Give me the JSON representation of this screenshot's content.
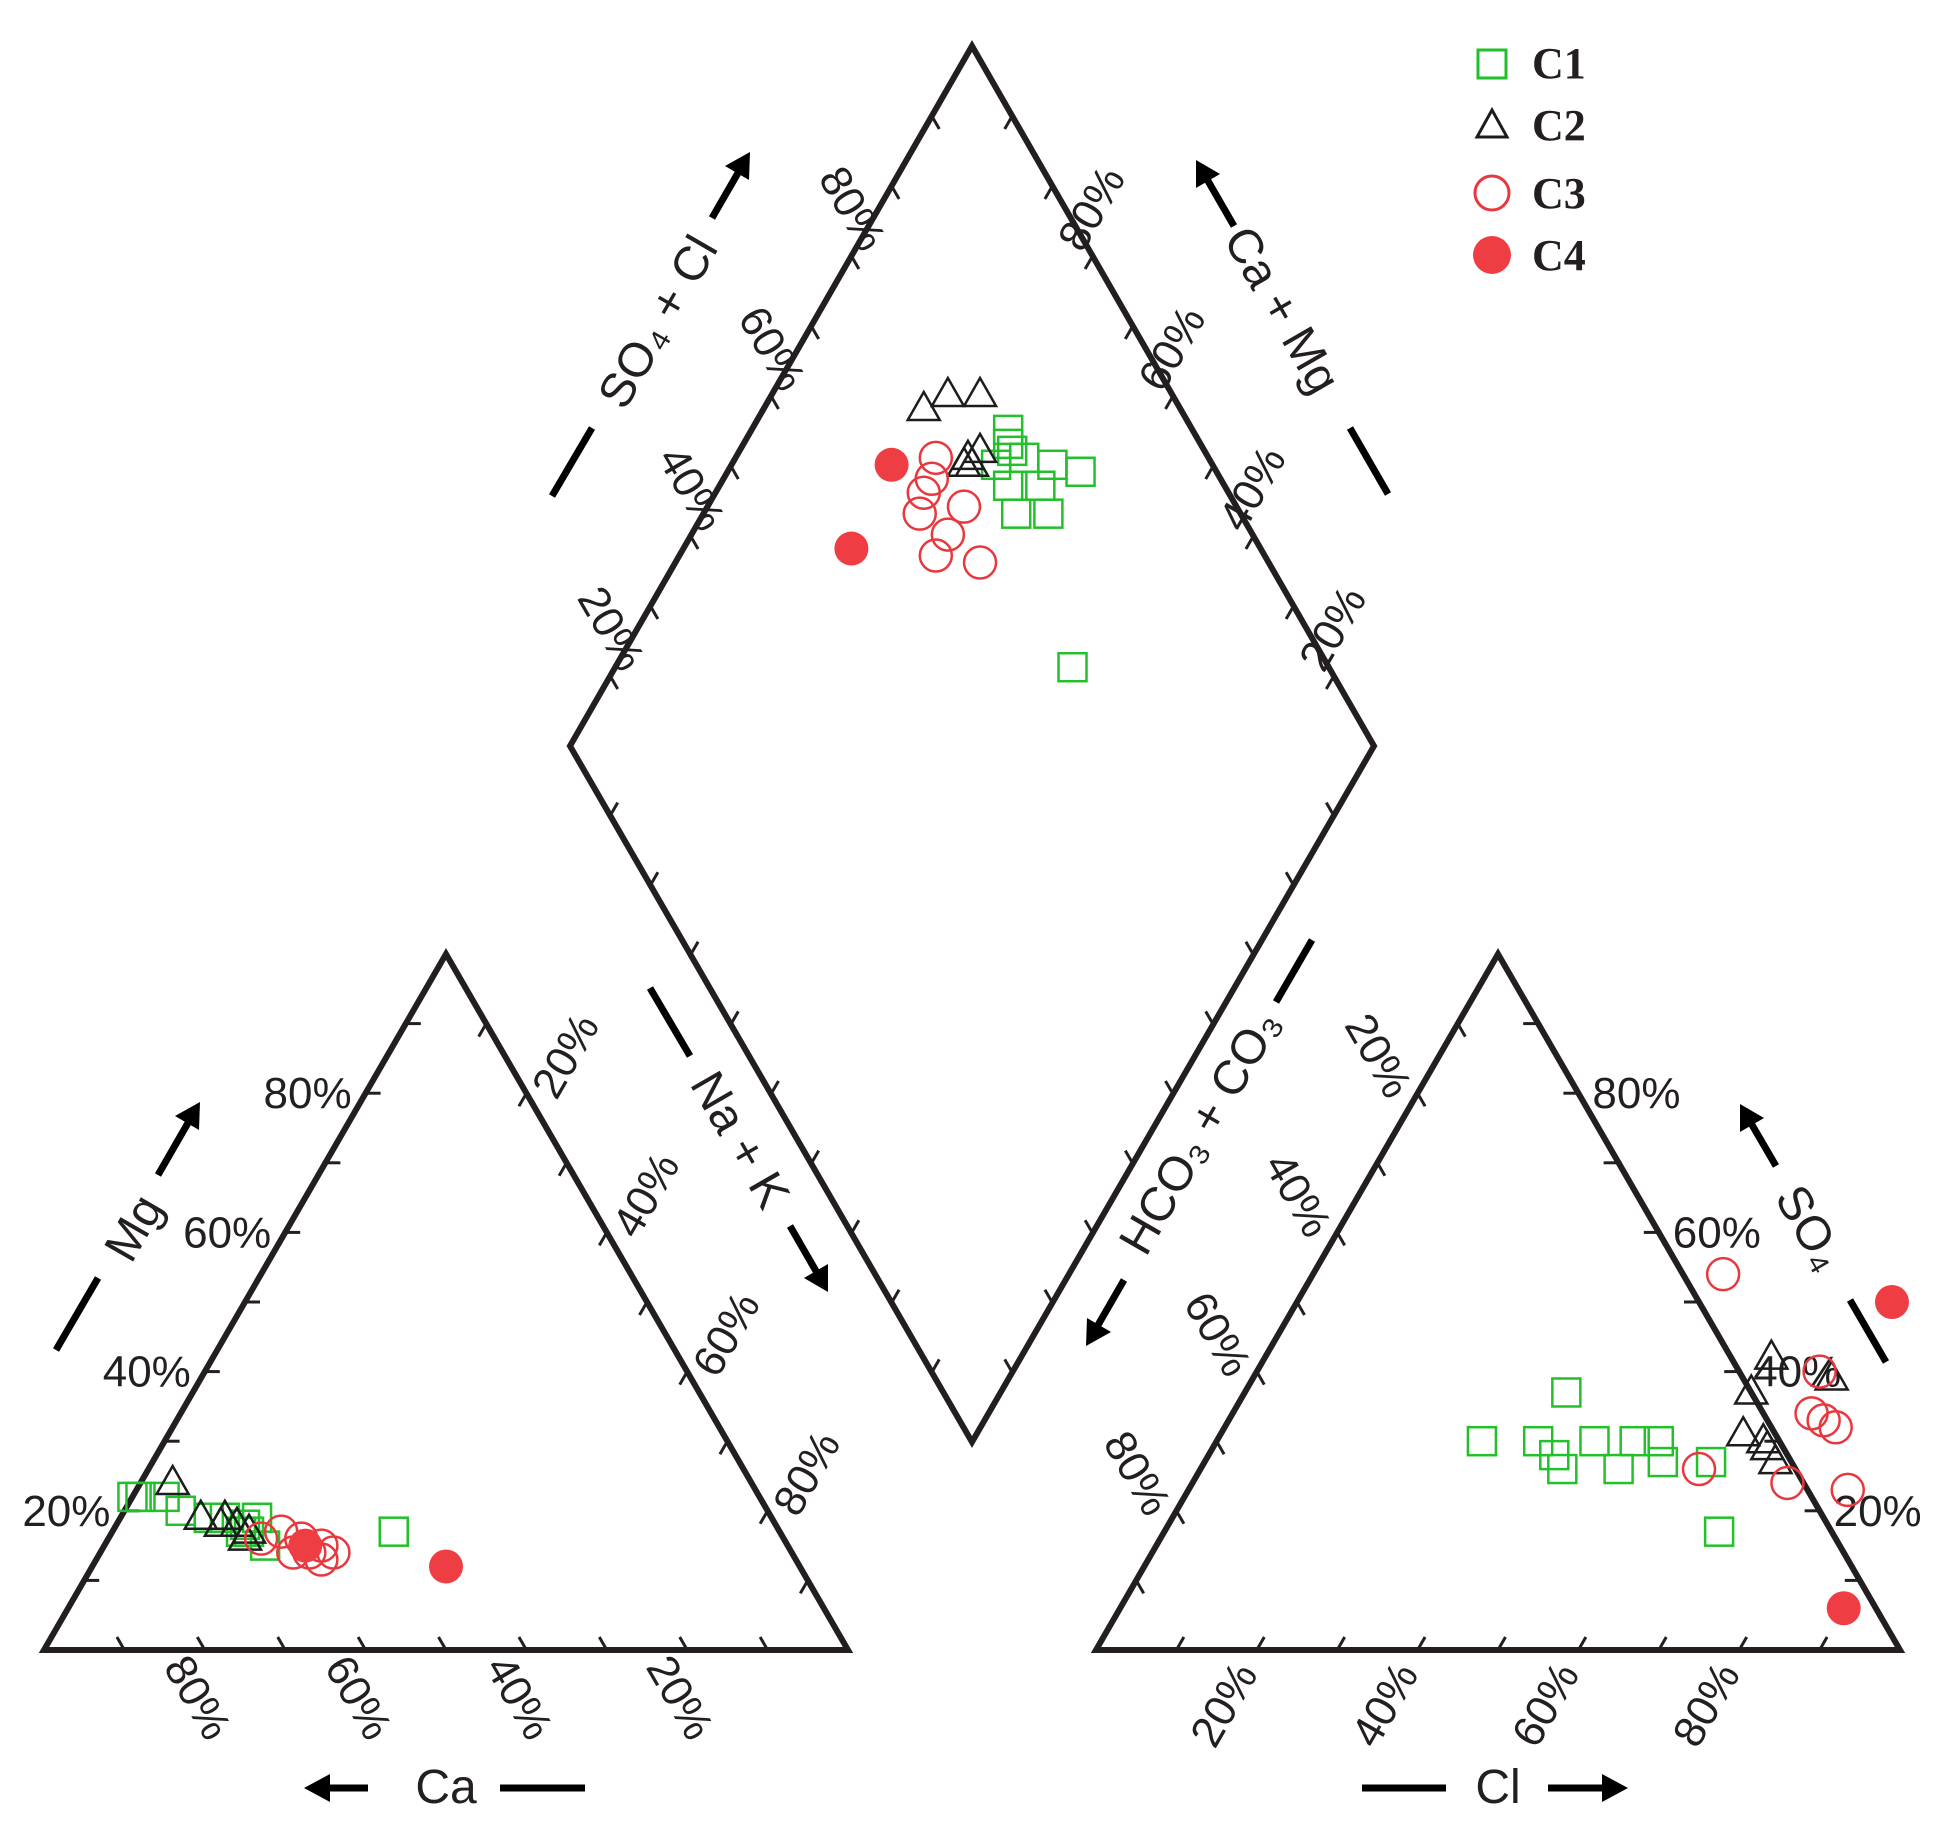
{
  "chart_data": {
    "type": "scatter",
    "subtype": "piper",
    "colors": {
      "C1": "#22c02a",
      "C2": "#1c1c1c",
      "C3": "#e8383d",
      "C4": "#ee3e44",
      "axis": "#231f20"
    },
    "legend": {
      "placement": "top-right",
      "entries": [
        {
          "label": "C1",
          "marker": "open-square",
          "color": "#22c02a"
        },
        {
          "label": "C2",
          "marker": "open-triangle",
          "color": "#1c1c1c"
        },
        {
          "label": "C3",
          "marker": "open-circle",
          "color": "#e8383d"
        },
        {
          "label": "C4",
          "marker": "filled-circle",
          "color": "#ee3e44"
        }
      ]
    },
    "axis_labels": {
      "ca": "Ca",
      "mg": "Mg",
      "na_k": "Na + K",
      "hco3_co3": "HCO₃ + CO₃",
      "so4": "SO₄",
      "cl": "Cl",
      "so4_cl": "SO₄ + Cl",
      "ca_mg": "Ca + Mg"
    },
    "tick_labels": {
      "ca": [
        "80%",
        "60%",
        "40%",
        "20%"
      ],
      "mg": [
        "20%",
        "40%",
        "60%",
        "80%"
      ],
      "na_k": [
        "20%",
        "40%",
        "60%",
        "80%"
      ],
      "cl": [
        "20%",
        "40%",
        "60%",
        "80%"
      ],
      "so4": [
        "20%",
        "40%",
        "60%",
        "80%"
      ],
      "hco3_co3": [
        "20%",
        "40%",
        "60%",
        "80%"
      ],
      "so4_cl": [
        "20%",
        "40%",
        "60%",
        "80%"
      ],
      "ca_mg": [
        "20%",
        "40%",
        "60%",
        "80%"
      ]
    },
    "series": [
      {
        "name": "C1",
        "cations": [
          {
            "ca": 78,
            "mg": 22
          },
          {
            "ca": 77,
            "mg": 22
          },
          {
            "ca": 74,
            "mg": 22
          },
          {
            "ca": 73,
            "mg": 20
          },
          {
            "ca": 70,
            "mg": 19
          },
          {
            "ca": 68,
            "mg": 19
          },
          {
            "ca": 67,
            "mg": 17
          },
          {
            "ca": 66,
            "mg": 18
          },
          {
            "ca": 66,
            "mg": 17
          },
          {
            "ca": 65,
            "mg": 15
          },
          {
            "ca": 64,
            "mg": 19
          },
          {
            "ca": 48,
            "mg": 17
          }
        ],
        "anions": [
          {
            "cl": 40,
            "so4": 30
          },
          {
            "cl": 40,
            "so4": 37
          },
          {
            "cl": 45,
            "so4": 26
          },
          {
            "cl": 47,
            "so4": 30
          },
          {
            "cl": 33,
            "so4": 30
          },
          {
            "cl": 43,
            "so4": 28
          },
          {
            "cl": 52,
            "so4": 26
          },
          {
            "cl": 52,
            "so4": 30
          },
          {
            "cl": 57,
            "so4": 27
          },
          {
            "cl": 55,
            "so4": 30
          },
          {
            "cl": 63,
            "so4": 27
          },
          {
            "cl": 69,
            "so4": 17
          }
        ],
        "diamond": [
          {
            "so4_cl": 60,
            "ca_mg": 80
          },
          {
            "so4_cl": 61,
            "ca_mg": 72
          },
          {
            "so4_cl": 67,
            "ca_mg": 73
          },
          {
            "so4_cl": 66,
            "ca_mg": 76
          },
          {
            "so4_cl": 67,
            "ca_mg": 76
          },
          {
            "so4_cl": 68,
            "ca_mg": 77
          },
          {
            "so4_cl": 60,
            "ca_mg": 77
          },
          {
            "so4_cl": 64,
            "ca_mg": 73
          },
          {
            "so4_cl": 64,
            "ca_mg": 77
          },
          {
            "so4_cl": 57,
            "ca_mg": 76
          },
          {
            "so4_cl": 43,
            "ca_mg": 68
          },
          {
            "so4_cl": 56,
            "ca_mg": 83
          }
        ]
      },
      {
        "name": "C2",
        "cations": [
          {
            "ca": 72,
            "mg": 24
          },
          {
            "ca": 71,
            "mg": 19
          },
          {
            "ca": 69,
            "mg": 18
          },
          {
            "ca": 68,
            "mg": 19
          },
          {
            "ca": 67,
            "mg": 18
          },
          {
            "ca": 67,
            "mg": 16
          },
          {
            "ca": 66,
            "mg": 17
          }
        ],
        "anions": [
          {
            "cl": 63,
            "so4": 42
          },
          {
            "cl": 63,
            "so4": 37
          },
          {
            "cl": 72,
            "so4": 39
          },
          {
            "cl": 65,
            "so4": 31
          },
          {
            "cl": 68,
            "so4": 30
          },
          {
            "cl": 69,
            "so4": 29
          },
          {
            "cl": 71,
            "so4": 27
          }
        ],
        "diamond": [
          {
            "so4_cl": 78,
            "ca_mg": 72
          },
          {
            "so4_cl": 74,
            "ca_mg": 76
          },
          {
            "so4_cl": 80,
            "ca_mg": 68
          },
          {
            "so4_cl": 70,
            "ca_mg": 72
          },
          {
            "so4_cl": 71,
            "ca_mg": 70
          },
          {
            "so4_cl": 71,
            "ca_mg": 69
          },
          {
            "so4_cl": 70,
            "ca_mg": 70
          }
        ]
      },
      {
        "name": "C3",
        "cations": [
          {
            "ca": 65,
            "mg": 16
          },
          {
            "ca": 62,
            "mg": 14
          },
          {
            "ca": 62,
            "mg": 17
          },
          {
            "ca": 60,
            "mg": 16
          },
          {
            "ca": 60,
            "mg": 14
          },
          {
            "ca": 58,
            "mg": 15
          },
          {
            "ca": 59,
            "mg": 13
          },
          {
            "ca": 57,
            "mg": 14
          }
        ],
        "anions": [
          {
            "cl": 51,
            "so4": 54
          },
          {
            "cl": 70,
            "so4": 40
          },
          {
            "cl": 72,
            "so4": 34
          },
          {
            "cl": 74,
            "so4": 33
          },
          {
            "cl": 62,
            "so4": 26
          },
          {
            "cl": 74,
            "so4": 24
          },
          {
            "cl": 82,
            "so4": 23
          },
          {
            "cl": 76,
            "so4": 32
          }
        ],
        "diamond": [
          {
            "so4_cl": 75,
            "ca_mg": 66
          },
          {
            "so4_cl": 74,
            "ca_mg": 64
          },
          {
            "so4_cl": 74,
            "ca_mg": 62
          },
          {
            "so4_cl": 73,
            "ca_mg": 60
          },
          {
            "so4_cl": 68,
            "ca_mg": 62
          },
          {
            "so4_cl": 68,
            "ca_mg": 66
          },
          {
            "so4_cl": 68,
            "ca_mg": 59
          },
          {
            "so4_cl": 62,
            "ca_mg": 64
          }
        ]
      },
      {
        "name": "C4",
        "cations": [
          {
            "ca": 60,
            "mg": 15
          },
          {
            "ca": 44,
            "mg": 12
          }
        ],
        "anions": [
          {
            "cl": 74,
            "so4": 50
          },
          {
            "cl": 90,
            "so4": 6
          }
        ],
        "diamond": [
          {
            "so4_cl": 80,
            "ca_mg": 60
          },
          {
            "so4_cl": 79,
            "ca_mg": 49
          }
        ]
      }
    ]
  }
}
